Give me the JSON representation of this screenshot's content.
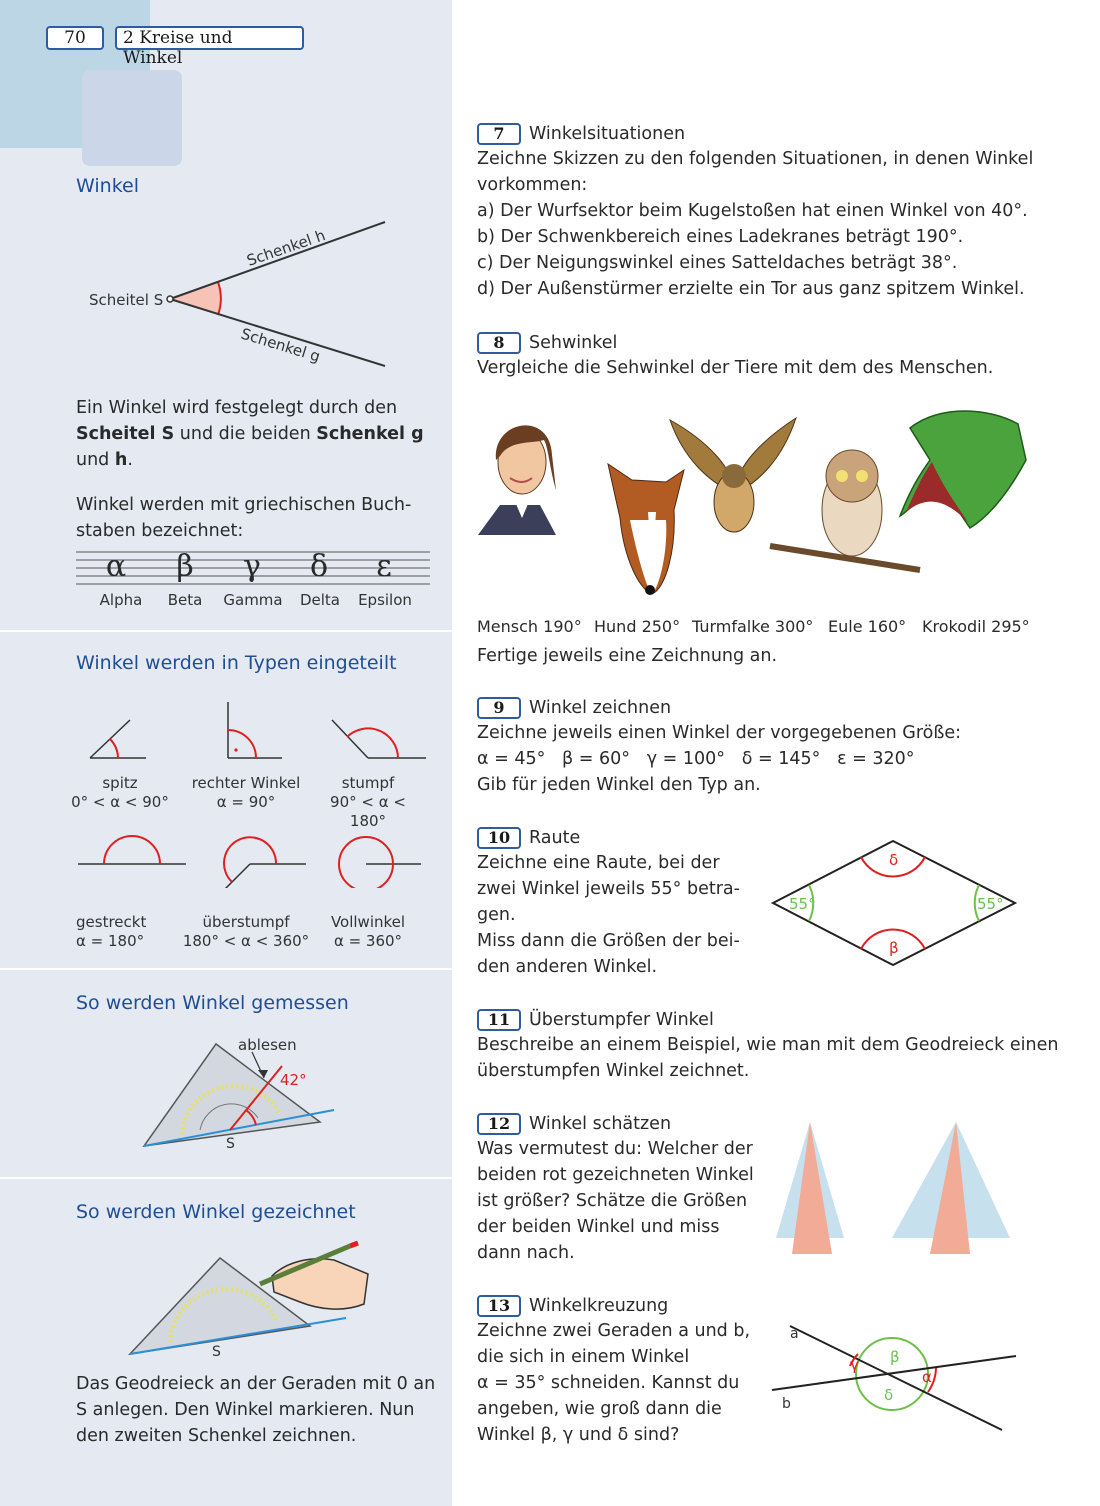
{
  "header": {
    "page_number": "70",
    "chapter": "2  Kreise und Winkel"
  },
  "sidebar": {
    "winkel": {
      "heading": "Winkel",
      "labels": {
        "vertex": "Scheitel S",
        "leg_h": "Schenkel h",
        "leg_g": "Schenkel g"
      },
      "definition": {
        "t1": "Ein Winkel wird festgelegt durch den",
        "b1": "Scheitel S",
        "t2": " und die beiden ",
        "b2": "Schenkel g",
        "t3": "und ",
        "b3": "h",
        "t4": "."
      },
      "greek_text": {
        "line1": "Winkel werden mit griechischen Buch-",
        "line2": "staben bezeichnet:"
      },
      "greek": [
        {
          "symbol": "α",
          "name": "Alpha"
        },
        {
          "symbol": "β",
          "name": "Beta"
        },
        {
          "symbol": "γ",
          "name": "Gamma"
        },
        {
          "symbol": "δ",
          "name": "Delta"
        },
        {
          "symbol": "ε",
          "name": "Epsilon"
        }
      ]
    },
    "types": {
      "heading": "Winkel werden in Typen eingeteilt",
      "items": [
        {
          "name": "spitz",
          "range": "0° < α < 90°"
        },
        {
          "name": "rechter Winkel",
          "range": "α = 90°"
        },
        {
          "name": "stumpf",
          "range": "90° < α < 180°"
        },
        {
          "name": "gestreckt",
          "range": "α = 180°"
        },
        {
          "name": "überstumpf",
          "range": "180° < α < 360°"
        },
        {
          "name": "Vollwinkel",
          "range": "α = 360°"
        }
      ]
    },
    "measure": {
      "heading": "So werden Winkel gemessen",
      "read_label": "ablesen",
      "angle_label": "42°",
      "vertex_label": "S"
    },
    "draw": {
      "heading": "So werden Winkel gezeichnet",
      "vertex_label": "S",
      "text": {
        "line1": "Das Geodreieck an der Geraden mit 0 an",
        "line2": "S anlegen. Den Winkel markieren. Nun",
        "line3": "den zweiten Schenkel zeichnen."
      }
    }
  },
  "exercises": {
    "e7": {
      "number": "7",
      "title": "Winkelsituationen",
      "intro": {
        "line1": "Zeichne Skizzen zu den folgenden Situationen, in denen Winkel",
        "line2": "vorkommen:"
      },
      "items": [
        "a) Der Wurfsektor beim Kugelstoßen hat einen Winkel von 40°.",
        "b) Der Schwenkbereich eines Ladekranes beträgt 190°.",
        "c) Der Neigungswinkel eines Satteldaches beträgt 38°.",
        "d) Der Außenstürmer erzielte ein Tor aus ganz spitzem Winkel."
      ]
    },
    "e8": {
      "number": "8",
      "title": "Sehwinkel",
      "text": "Vergleiche die Sehwinkel der Tiere mit dem des Menschen.",
      "animals": [
        {
          "name": "Mensch",
          "value": "190°"
        },
        {
          "name": "Hund",
          "value": "250°"
        },
        {
          "name": "Turmfalke",
          "value": "300°"
        },
        {
          "name": "Eule",
          "value": "160°"
        },
        {
          "name": "Krokodil",
          "value": "295°"
        }
      ],
      "note": "Fertige jeweils eine Zeichnung an."
    },
    "e9": {
      "number": "9",
      "title": "Winkel zeichnen",
      "line1": "Zeichne jeweils einen Winkel der vorgegebenen Größe:",
      "angles": [
        "α = 45°",
        "β = 60°",
        "γ = 100°",
        "δ = 145°",
        "ε = 320°"
      ],
      "line3": "Gib für jeden Winkel den Typ an."
    },
    "e10": {
      "number": "10",
      "title": "Raute",
      "lines": [
        "Zeichne eine Raute, bei der",
        "zwei Winkel jeweils 55° betra-",
        "gen.",
        "Miss dann die Größen der bei-",
        "den anderen Winkel."
      ],
      "fig": {
        "left": "55°",
        "right": "55°",
        "top": "δ",
        "bottom": "β"
      }
    },
    "e11": {
      "number": "11",
      "title": "Überstumpfer Winkel",
      "line1": "Beschreibe an einem Beispiel, wie man mit dem Geodreieck einen",
      "line2": "überstumpfen Winkel zeichnet."
    },
    "e12": {
      "number": "12",
      "title": "Winkel schätzen",
      "lines": [
        "Was vermutest du: Welcher der",
        "beiden rot gezeichneten Winkel",
        "ist größer? Schätze die Größen",
        "der beiden Winkel und miss",
        "dann nach."
      ]
    },
    "e13": {
      "number": "13",
      "title": "Winkelkreuzung",
      "lines": [
        "Zeichne zwei Geraden a und b,",
        "die sich in einem Winkel",
        "α = 35° schneiden. Kannst du",
        "angeben, wie groß dann die",
        "Winkel β, γ und δ sind?"
      ],
      "fig": {
        "line_a": "a",
        "line_b": "b",
        "alpha": "α",
        "beta": "β",
        "gamma": "γ",
        "delta": "δ"
      }
    }
  },
  "colors": {
    "accent": "#1f4e93",
    "red": "#e02020",
    "green": "#6cc04a",
    "sidebar": "#e4e9f2"
  }
}
